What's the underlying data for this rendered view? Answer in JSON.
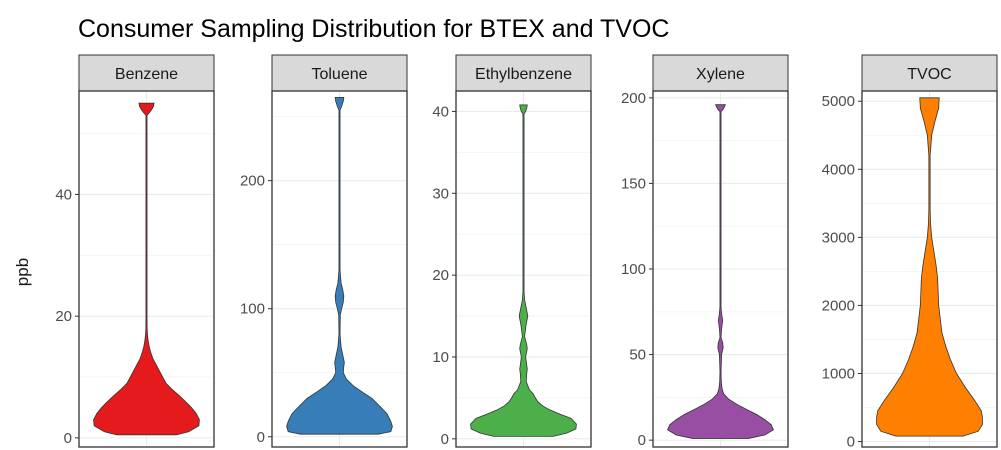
{
  "chart_data": {
    "type": "violin",
    "title": "Consumer Sampling Distribution for BTEX and TVOC",
    "ylabel": "ppb",
    "xlabel": "",
    "grid": true,
    "legend": "none",
    "panels": [
      {
        "name": "Benzene",
        "color": "#e41a1c",
        "ylim": [
          -1.5,
          57
        ],
        "ticks": [
          0,
          20,
          40
        ],
        "density": [
          [
            0.5,
            0.55
          ],
          [
            1,
            0.78
          ],
          [
            2,
            0.97
          ],
          [
            3,
            0.98
          ],
          [
            4,
            0.92
          ],
          [
            5,
            0.83
          ],
          [
            6,
            0.72
          ],
          [
            7,
            0.6
          ],
          [
            8,
            0.47
          ],
          [
            9,
            0.36
          ],
          [
            10,
            0.3
          ],
          [
            11,
            0.24
          ],
          [
            12,
            0.18
          ],
          [
            13,
            0.12
          ],
          [
            14,
            0.08
          ],
          [
            15,
            0.05
          ],
          [
            16,
            0.03
          ],
          [
            17,
            0.018
          ],
          [
            18,
            0.012
          ],
          [
            20,
            0.01
          ],
          [
            53,
            0.01
          ],
          [
            53.5,
            0.06
          ],
          [
            54,
            0.1
          ],
          [
            54.5,
            0.13
          ],
          [
            55,
            0.14
          ]
        ]
      },
      {
        "name": "Toluene",
        "color": "#377eb8",
        "ylim": [
          -8,
          270
        ],
        "ticks": [
          0,
          100,
          200
        ],
        "density": [
          [
            2,
            0.72
          ],
          [
            4,
            0.95
          ],
          [
            8,
            0.98
          ],
          [
            12,
            0.95
          ],
          [
            18,
            0.88
          ],
          [
            25,
            0.72
          ],
          [
            30,
            0.6
          ],
          [
            35,
            0.42
          ],
          [
            40,
            0.25
          ],
          [
            45,
            0.13
          ],
          [
            50,
            0.07
          ],
          [
            55,
            0.08
          ],
          [
            58,
            0.09
          ],
          [
            62,
            0.07
          ],
          [
            70,
            0.03
          ],
          [
            80,
            0.01
          ],
          [
            95,
            0.015
          ],
          [
            100,
            0.04
          ],
          [
            105,
            0.07
          ],
          [
            110,
            0.08
          ],
          [
            115,
            0.06
          ],
          [
            120,
            0.03
          ],
          [
            130,
            0.01
          ],
          [
            255,
            0.01
          ],
          [
            258,
            0.04
          ],
          [
            262,
            0.07
          ],
          [
            265,
            0.08
          ]
        ]
      },
      {
        "name": "Ethylbenzene",
        "color": "#4daf4a",
        "ylim": [
          -1,
          42.5
        ],
        "ticks": [
          0,
          10,
          20,
          30,
          40
        ],
        "density": [
          [
            0.3,
            0.55
          ],
          [
            0.7,
            0.8
          ],
          [
            1.2,
            0.97
          ],
          [
            1.8,
            0.98
          ],
          [
            2.5,
            0.88
          ],
          [
            3,
            0.68
          ],
          [
            3.5,
            0.5
          ],
          [
            4,
            0.36
          ],
          [
            4.5,
            0.27
          ],
          [
            5,
            0.22
          ],
          [
            5.5,
            0.18
          ],
          [
            6,
            0.11
          ],
          [
            7,
            0.05
          ],
          [
            8,
            0.06
          ],
          [
            8.5,
            0.07
          ],
          [
            9,
            0.06
          ],
          [
            10,
            0.04
          ],
          [
            11,
            0.07
          ],
          [
            11.5,
            0.06
          ],
          [
            12.5,
            0.02
          ],
          [
            14,
            0.05
          ],
          [
            15,
            0.08
          ],
          [
            16,
            0.05
          ],
          [
            17,
            0.02
          ],
          [
            18,
            0.01
          ],
          [
            39.7,
            0.01
          ],
          [
            40,
            0.04
          ],
          [
            40.4,
            0.06
          ],
          [
            40.8,
            0.07
          ]
        ]
      },
      {
        "name": "Xylene",
        "color": "#984ea3",
        "ylim": [
          -4,
          204
        ],
        "ticks": [
          0,
          50,
          100,
          150,
          200
        ],
        "density": [
          [
            1,
            0.52
          ],
          [
            3,
            0.82
          ],
          [
            6,
            0.98
          ],
          [
            9,
            0.94
          ],
          [
            12,
            0.82
          ],
          [
            15,
            0.67
          ],
          [
            18,
            0.48
          ],
          [
            21,
            0.3
          ],
          [
            24,
            0.15
          ],
          [
            27,
            0.06
          ],
          [
            30,
            0.03
          ],
          [
            34,
            0.015
          ],
          [
            40,
            0.01
          ],
          [
            50,
            0.02
          ],
          [
            54,
            0.05
          ],
          [
            57,
            0.04
          ],
          [
            60,
            0.01
          ],
          [
            65,
            0.02
          ],
          [
            70,
            0.04
          ],
          [
            74,
            0.02
          ],
          [
            78,
            0.01
          ],
          [
            192,
            0.01
          ],
          [
            193,
            0.04
          ],
          [
            194.5,
            0.07
          ],
          [
            196,
            0.09
          ]
        ]
      },
      {
        "name": "TVOC",
        "color": "#ff7f00",
        "ylim": [
          -80,
          5150
        ],
        "ticks": [
          0,
          1000,
          2000,
          3000,
          4000,
          5000
        ],
        "density": [
          [
            80,
            0.62
          ],
          [
            150,
            0.9
          ],
          [
            250,
            0.98
          ],
          [
            350,
            0.98
          ],
          [
            450,
            0.96
          ],
          [
            600,
            0.84
          ],
          [
            800,
            0.66
          ],
          [
            1000,
            0.5
          ],
          [
            1200,
            0.39
          ],
          [
            1400,
            0.3
          ],
          [
            1600,
            0.23
          ],
          [
            1800,
            0.2
          ],
          [
            2000,
            0.17
          ],
          [
            2200,
            0.16
          ],
          [
            2400,
            0.15
          ],
          [
            2600,
            0.12
          ],
          [
            2800,
            0.08
          ],
          [
            3000,
            0.04
          ],
          [
            3200,
            0.02
          ],
          [
            3400,
            0.012
          ],
          [
            4200,
            0.012
          ],
          [
            4500,
            0.04
          ],
          [
            4700,
            0.1
          ],
          [
            4900,
            0.17
          ],
          [
            5050,
            0.18
          ]
        ]
      }
    ]
  }
}
